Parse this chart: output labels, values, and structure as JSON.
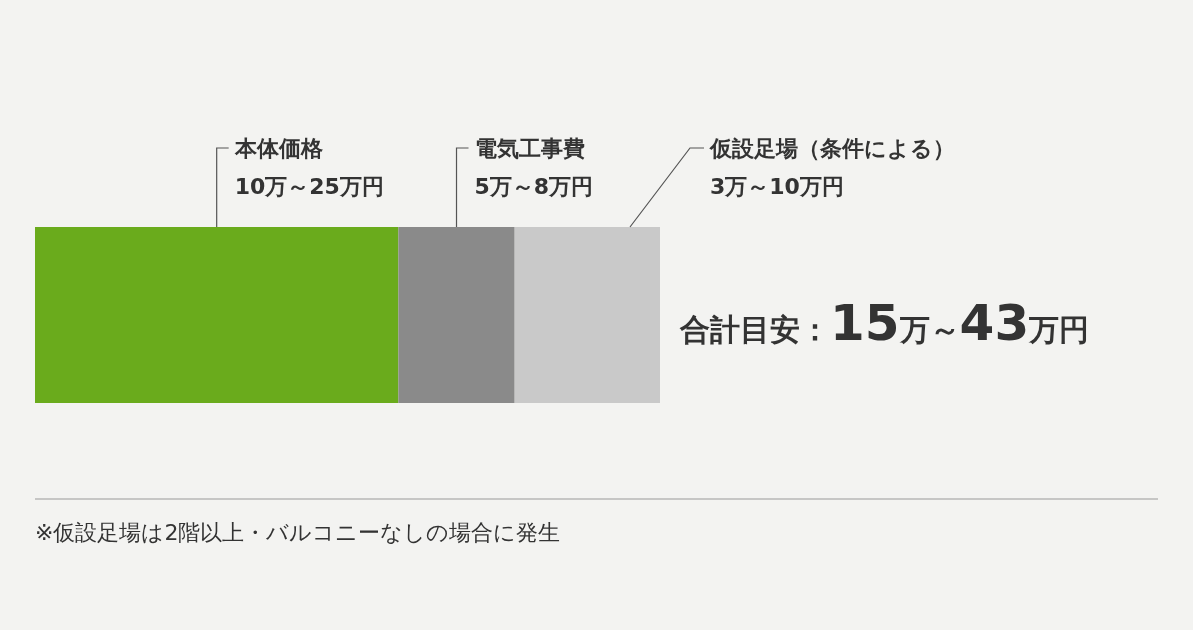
{
  "chart_data": {
    "type": "bar",
    "orientation": "horizontal",
    "stacked": true,
    "categories": [
      null
    ],
    "series": [
      {
        "name": "本体価格",
        "color": "#6aab1c",
        "values": [
          25
        ],
        "value_labels": [
          "10万～25万円"
        ]
      },
      {
        "name": "電気工事費",
        "color": "#8a8a8a",
        "values": [
          8
        ],
        "value_labels": [
          "5万～8万円"
        ]
      },
      {
        "name": "仮設足場（条件による）",
        "color": "#c9c9c9",
        "values": [
          10
        ],
        "value_labels": [
          "3万～10万円"
        ]
      }
    ],
    "annotations": [
      "合計目安：15万～43万円",
      "※仮設足場は2階以上・バルコニーなしの場合に発生"
    ]
  }
}
